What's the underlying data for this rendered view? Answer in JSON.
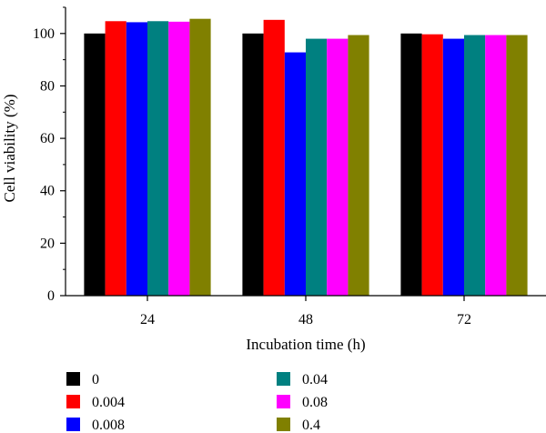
{
  "chart_data": {
    "type": "bar",
    "title": "",
    "xlabel": "Incubation time (h)",
    "ylabel": "Cell viability (%)",
    "ylim": [
      0,
      110
    ],
    "yticks": [
      0,
      20,
      40,
      60,
      80,
      100
    ],
    "categories": [
      "24",
      "48",
      "72"
    ],
    "grid": false,
    "legend_position": "bottom",
    "series": [
      {
        "name": "0",
        "color": "#000000",
        "values": [
          100,
          100,
          100
        ]
      },
      {
        "name": "0.004",
        "color": "#ff0000",
        "values": [
          104.7,
          105.2,
          99.7
        ]
      },
      {
        "name": "0.008",
        "color": "#0000ff",
        "values": [
          104.3,
          92.8,
          98.0
        ]
      },
      {
        "name": "0.04",
        "color": "#008080",
        "values": [
          104.7,
          98.0,
          99.4
        ]
      },
      {
        "name": "0.08",
        "color": "#ff00ff",
        "values": [
          104.5,
          98.0,
          99.4
        ]
      },
      {
        "name": "0.4",
        "color": "#808000",
        "values": [
          105.6,
          99.4,
          99.4
        ]
      }
    ]
  }
}
